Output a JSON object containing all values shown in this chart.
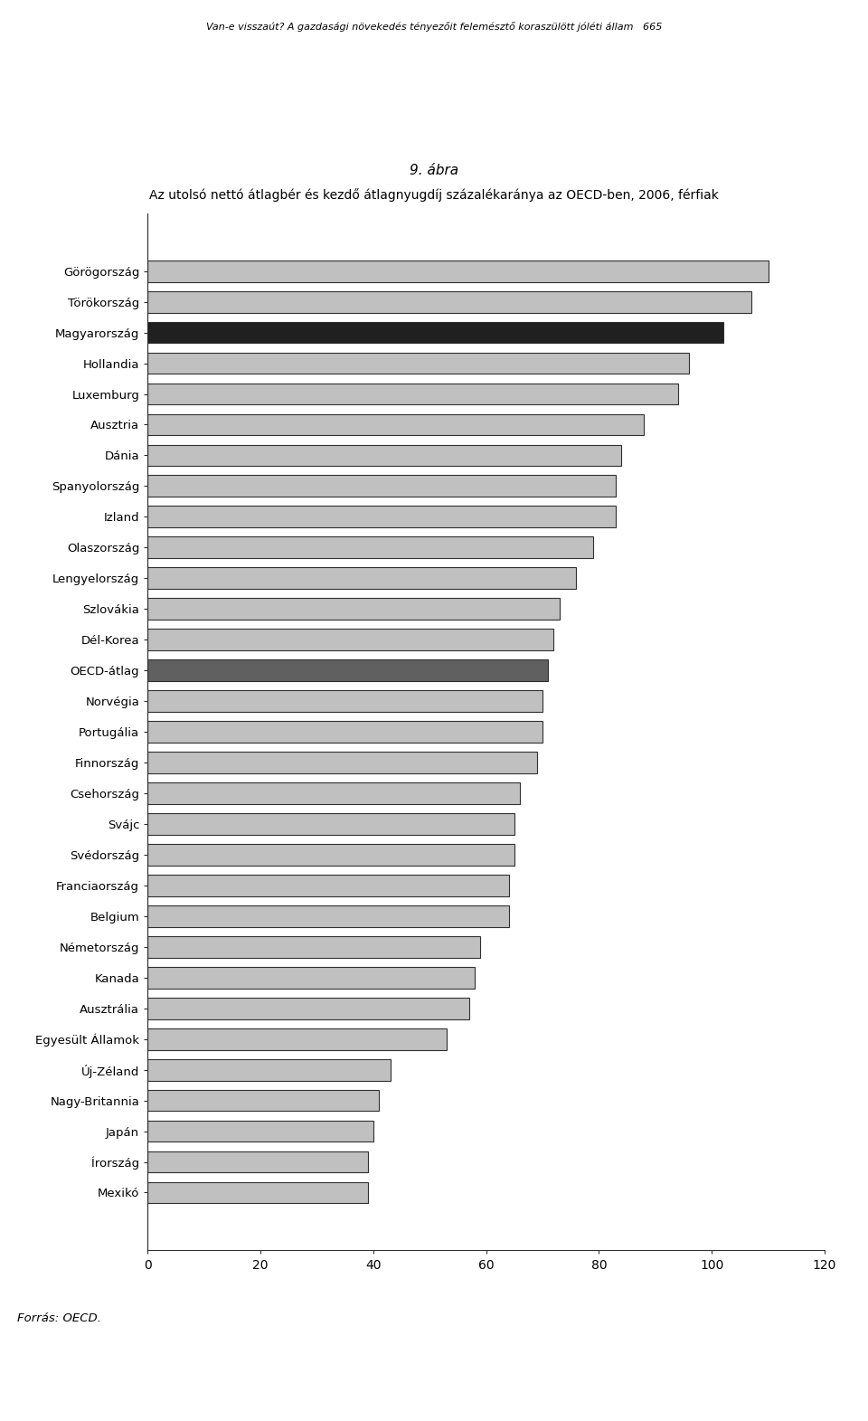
{
  "title_line1": "9. ábra",
  "title_line2": "Az utolsó nettó átlagbér és kezdő átlagnyugdíj százalékaránya az OECD-ben, 2006, férfiak",
  "header": "Van-e visszaút? A gazdasági növekedés tényezőit felemésztő koraszülött jóléti állam   665",
  "footer": "Forrás: OECD.",
  "categories": [
    "Görögország",
    "Törökország",
    "Magyarország",
    "Hollandia",
    "Luxemburg",
    "Ausztria",
    "Dánia",
    "Spanyolország",
    "Izland",
    "Olaszország",
    "Lengyelország",
    "Szlovákia",
    "Dél-Korea",
    "OECD-átlag",
    "Norvégia",
    "Portugália",
    "Finnország",
    "Csehország",
    "Svájc",
    "Svédország",
    "Franciaország",
    "Belgium",
    "Németország",
    "Kanada",
    "Ausztrália",
    "Egyesült Államok",
    "Új-Zéland",
    "Nagy-Britannia",
    "Japán",
    "Írország",
    "Mexikó"
  ],
  "values": [
    110,
    107,
    102,
    96,
    94,
    88,
    84,
    83,
    83,
    79,
    76,
    73,
    72,
    71,
    70,
    70,
    69,
    66,
    65,
    65,
    64,
    64,
    59,
    58,
    57,
    53,
    43,
    41,
    40,
    39,
    39
  ],
  "bar_colors": [
    "#c0c0c0",
    "#c0c0c0",
    "#202020",
    "#c0c0c0",
    "#c0c0c0",
    "#c0c0c0",
    "#c0c0c0",
    "#c0c0c0",
    "#c0c0c0",
    "#c0c0c0",
    "#c0c0c0",
    "#c0c0c0",
    "#c0c0c0",
    "#606060",
    "#c0c0c0",
    "#c0c0c0",
    "#c0c0c0",
    "#c0c0c0",
    "#c0c0c0",
    "#c0c0c0",
    "#c0c0c0",
    "#c0c0c0",
    "#c0c0c0",
    "#c0c0c0",
    "#c0c0c0",
    "#c0c0c0",
    "#c0c0c0",
    "#c0c0c0",
    "#c0c0c0",
    "#c0c0c0",
    "#c0c0c0"
  ],
  "xlim": [
    0,
    120
  ],
  "xticks": [
    0,
    20,
    40,
    60,
    80,
    100,
    120
  ],
  "bar_edge_color": "#303030",
  "bar_linewidth": 0.8,
  "background_color": "#ffffff"
}
